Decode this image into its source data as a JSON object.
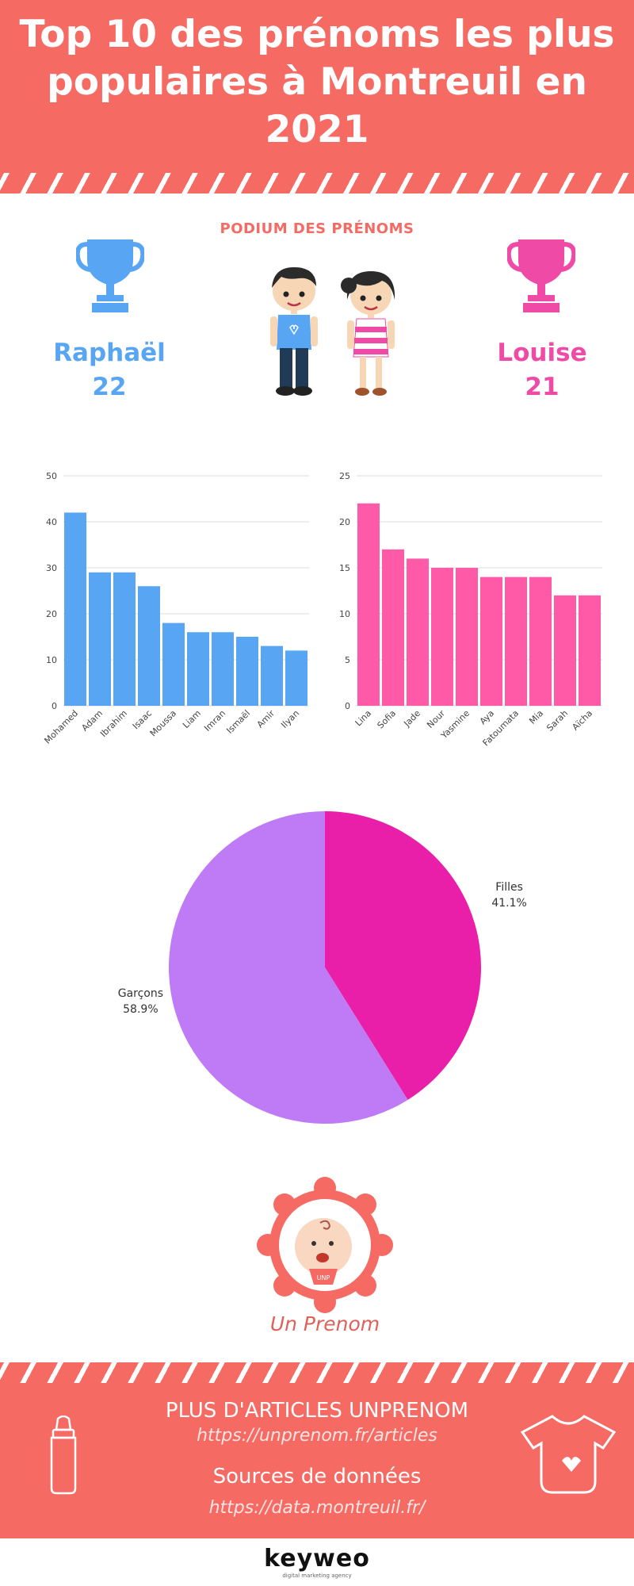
{
  "header": {
    "title": "Top 10 des prénoms les plus populaires à Montreuil en 2021"
  },
  "podium": {
    "label": "PODIUM DES PRÉNOMS",
    "boy": {
      "name": "Raphaël",
      "count": "22"
    },
    "girl": {
      "name": "Louise",
      "count": "21"
    }
  },
  "colors": {
    "header": "#f56a63",
    "boys": "#58a6f3",
    "girls": "#ff5aa7",
    "pie_boys": "#bf7bf6",
    "pie_girls": "#e91ea9"
  },
  "chart_data": [
    {
      "type": "bar",
      "title": "",
      "categories": [
        "Mohamed",
        "Adam",
        "Ibrahim",
        "Isaac",
        "Moussa",
        "Liam",
        "Imran",
        "Ismaël",
        "Amir",
        "Ilyan"
      ],
      "values": [
        42,
        29,
        29,
        26,
        18,
        16,
        16,
        15,
        13,
        12
      ],
      "yticks": [
        "0",
        "10",
        "20",
        "30",
        "40",
        "50"
      ],
      "ylim": [
        0,
        50
      ]
    },
    {
      "type": "bar",
      "title": "",
      "categories": [
        "Lina",
        "Sofia",
        "Jade",
        "Nour",
        "Yasmine",
        "Aya",
        "Fatoumata",
        "Mia",
        "Sarah",
        "Aïcha"
      ],
      "values": [
        22,
        17,
        16,
        15,
        15,
        14,
        14,
        14,
        12,
        12
      ],
      "yticks": [
        "0",
        "5",
        "10",
        "15",
        "20",
        "25"
      ],
      "ylim": [
        0,
        25
      ]
    },
    {
      "type": "pie",
      "slices": [
        {
          "label": "Filles",
          "value": 41.1,
          "display": "41.1%"
        },
        {
          "label": "Garçons",
          "value": 58.9,
          "display": "58.9%"
        }
      ]
    }
  ],
  "brand": {
    "logo_text": "Un Prenom",
    "badge": "UNP"
  },
  "footer": {
    "more_title": "PLUS D'ARTICLES UNPRENOM",
    "more_url": "https://unprenom.fr/articles",
    "sources_title": "Sources de données",
    "sources_url": "https://data.montreuil.fr/"
  },
  "agency": {
    "name": "keyweo",
    "tagline": "digital marketing agency"
  }
}
